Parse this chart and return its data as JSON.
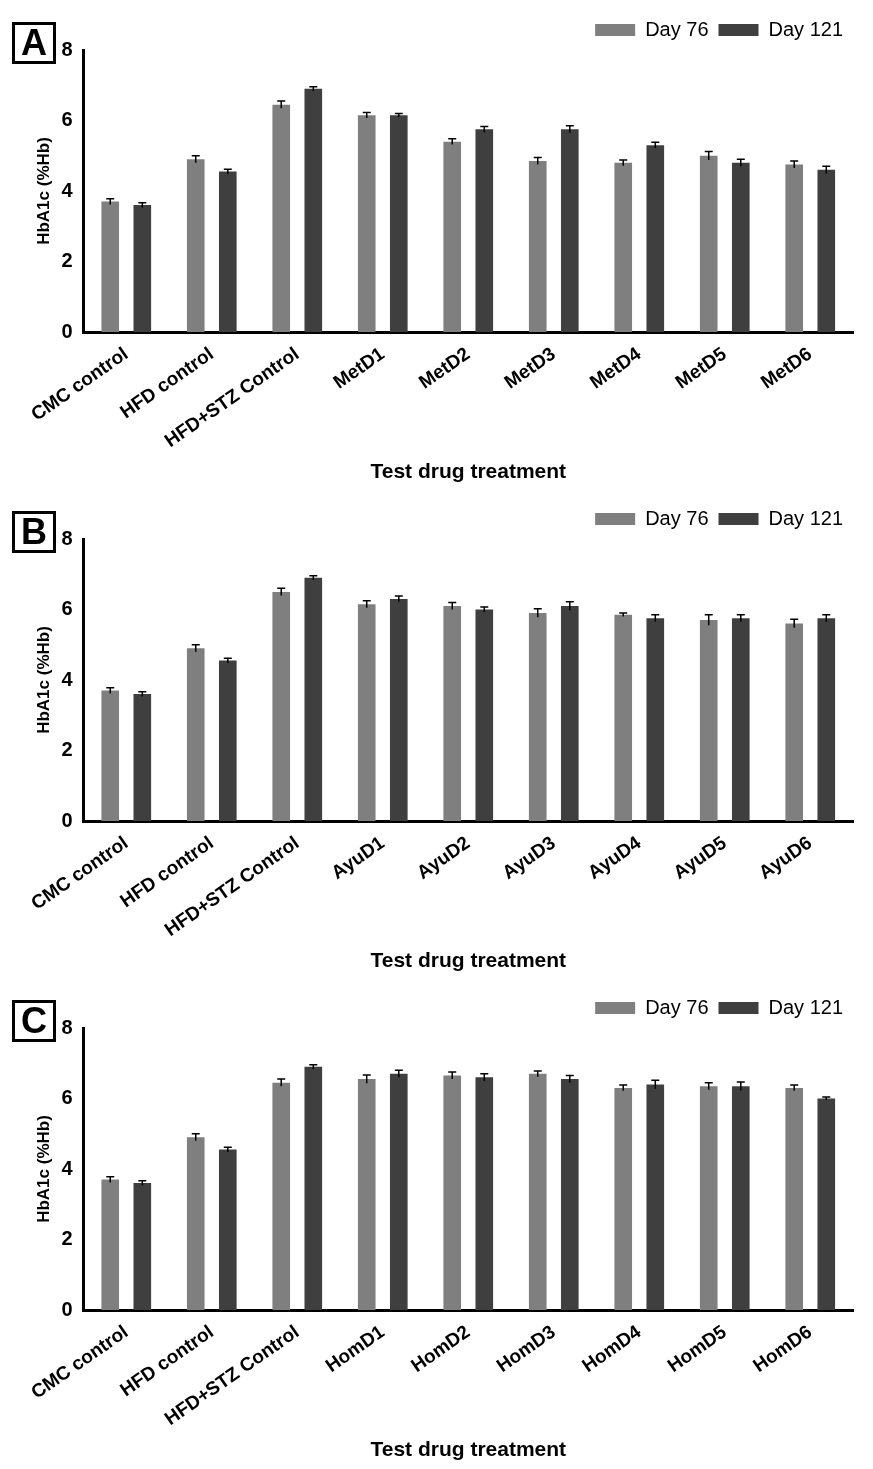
{
  "chart_data": [
    {
      "type": "bar",
      "title": "A",
      "xlabel": "Test drug treatment",
      "ylabel": "HbA1c (%Hb)",
      "categories": [
        "CMC control",
        "HFD control",
        "HFD+STZ Control",
        "MetD1",
        "MetD2",
        "MetD3",
        "MetD4",
        "MetD5",
        "MetD6"
      ],
      "series": [
        {
          "name": "Day 76",
          "color": "#7f7f7f",
          "values": [
            3.7,
            4.9,
            6.45,
            6.15,
            5.4,
            4.85,
            4.8,
            5.0,
            4.75
          ],
          "errors": [
            0.08,
            0.1,
            0.1,
            0.08,
            0.08,
            0.1,
            0.08,
            0.12,
            0.1
          ]
        },
        {
          "name": "Day 121",
          "color": "#3f3f3f",
          "values": [
            3.6,
            4.55,
            6.9,
            6.15,
            5.75,
            5.75,
            5.3,
            4.8,
            4.6
          ],
          "errors": [
            0.07,
            0.07,
            0.06,
            0.05,
            0.08,
            0.1,
            0.08,
            0.1,
            0.1
          ]
        }
      ],
      "ylim": [
        0,
        8
      ],
      "yticks": [
        0,
        2,
        4,
        6,
        8
      ],
      "grid": false,
      "legend": "top right"
    },
    {
      "type": "bar",
      "title": "B",
      "xlabel": "Test drug treatment",
      "ylabel": "HbA1c (%Hb)",
      "categories": [
        "CMC control",
        "HFD control",
        "HFD+STZ Control",
        "AyuD1",
        "AyuD2",
        "AyuD3",
        "AyuD4",
        "AyuD5",
        "AyuD6"
      ],
      "series": [
        {
          "name": "Day 76",
          "color": "#7f7f7f",
          "values": [
            3.7,
            4.9,
            6.5,
            6.15,
            6.1,
            5.9,
            5.85,
            5.7,
            5.6
          ],
          "errors": [
            0.08,
            0.1,
            0.1,
            0.1,
            0.1,
            0.12,
            0.05,
            0.15,
            0.12
          ]
        },
        {
          "name": "Day 121",
          "color": "#3f3f3f",
          "values": [
            3.6,
            4.55,
            6.9,
            6.3,
            6.0,
            6.1,
            5.75,
            5.75,
            5.75
          ],
          "errors": [
            0.07,
            0.07,
            0.06,
            0.08,
            0.07,
            0.12,
            0.1,
            0.1,
            0.1
          ]
        }
      ],
      "ylim": [
        0,
        8
      ],
      "yticks": [
        0,
        2,
        4,
        6,
        8
      ],
      "grid": false,
      "legend": "top right"
    },
    {
      "type": "bar",
      "title": "C",
      "xlabel": "Test drug treatment",
      "ylabel": "HbA1c (%Hb)",
      "categories": [
        "CMC control",
        "HFD control",
        "HFD+STZ Control",
        "HomD1",
        "HomD2",
        "HomD3",
        "HomD4",
        "HomD5",
        "HomD6"
      ],
      "series": [
        {
          "name": "Day 76",
          "color": "#7f7f7f",
          "values": [
            3.7,
            4.9,
            6.45,
            6.55,
            6.65,
            6.7,
            6.3,
            6.35,
            6.3
          ],
          "errors": [
            0.08,
            0.1,
            0.1,
            0.12,
            0.1,
            0.08,
            0.08,
            0.1,
            0.08
          ]
        },
        {
          "name": "Day 121",
          "color": "#3f3f3f",
          "values": [
            3.6,
            4.55,
            6.9,
            6.7,
            6.6,
            6.55,
            6.4,
            6.35,
            6.0
          ],
          "errors": [
            0.07,
            0.07,
            0.06,
            0.1,
            0.1,
            0.1,
            0.12,
            0.12,
            0.04
          ]
        }
      ],
      "ylim": [
        0,
        8
      ],
      "yticks": [
        0,
        2,
        4,
        6,
        8
      ],
      "grid": false,
      "legend": "top right"
    }
  ]
}
